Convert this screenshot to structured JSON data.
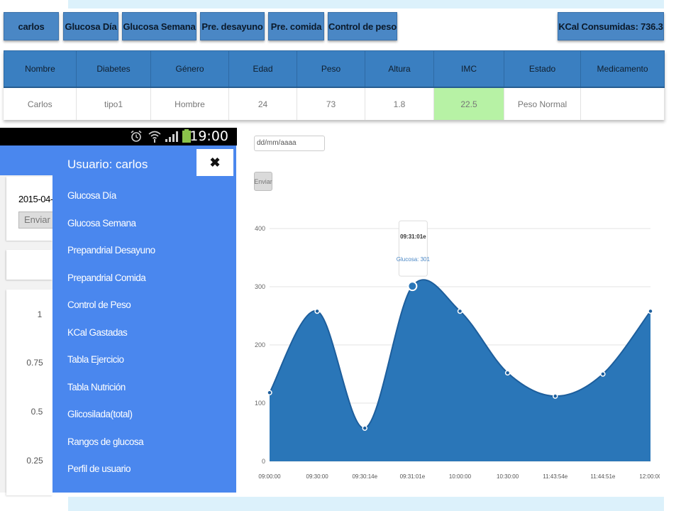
{
  "nav": {
    "user_label": "carlos",
    "tabs": [
      "Glucosa Día",
      "Glucosa Semana",
      "Pre. desayuno",
      "Pre. comida",
      "Control de peso"
    ],
    "kcal_label": "KCal Consumidas: 736.3"
  },
  "patient_table": {
    "headers": [
      "Nombre",
      "Diabetes",
      "Género",
      "Edad",
      "Peso",
      "Altura",
      "IMC",
      "Estado",
      "Medicamento"
    ],
    "row": [
      "Carlos",
      "tipo1",
      "Hombre",
      "24",
      "73",
      "1.8",
      "22.5",
      "Peso Normal",
      ""
    ],
    "imc_highlight_color": "#b7f2a5"
  },
  "status_bar": {
    "time": "19:00",
    "icons": [
      "alarm-icon",
      "wifi-icon",
      "signal-icon",
      "battery-icon"
    ]
  },
  "background_screen": {
    "date_value": "2015-04-",
    "button_label": "Enviar",
    "y_ticks": [
      "1",
      "0.75",
      "0.5",
      "0.25"
    ]
  },
  "drawer": {
    "title": "Usuario: carlos",
    "close_icon": "close-icon",
    "items": [
      "Glucosa Día",
      "Glucosa Semana",
      "Prepandrial Desayuno",
      "Prepandrial Comida",
      "Control de Peso",
      "KCal Gastadas",
      "Tabla Ejercicio",
      "Tabla Nutrición",
      "Glicosilada(total)",
      "Rangos de glucosa",
      "Perfil de usuario"
    ]
  },
  "chart_controls": {
    "date_placeholder": "dd/mm/aaaa",
    "button_label": "Enviar"
  },
  "chart_data": {
    "type": "area",
    "title": "",
    "xlabel": "",
    "ylabel": "",
    "x": [
      "09:00:00",
      "09:30:00",
      "09:30:14e",
      "09:31:01e",
      "10:00:00",
      "10:30:00",
      "11:43:54e",
      "11:44:51e",
      "12:00:00"
    ],
    "series": [
      {
        "values": [
          118,
          258,
          57,
          301,
          258,
          152,
          112,
          150,
          258
        ]
      }
    ],
    "ylim": [
      0,
      400
    ],
    "y_ticks": [
      0,
      100,
      200,
      300,
      400
    ],
    "grid": true,
    "fill_color": "#2a76b8",
    "tooltip": {
      "time": "09:31:01e",
      "label": "Glucosa: 301"
    }
  }
}
